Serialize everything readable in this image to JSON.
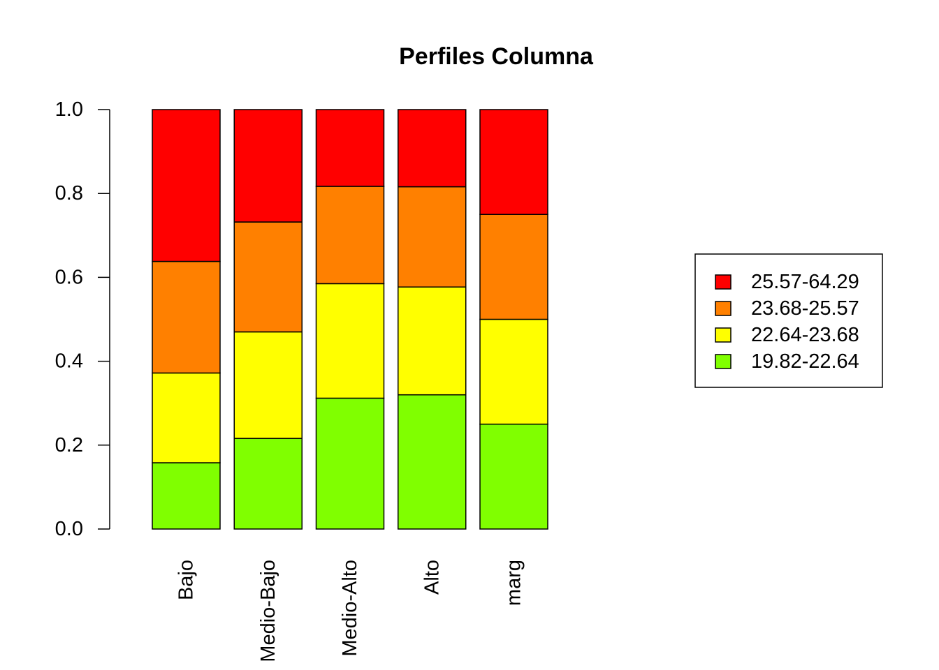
{
  "chart_data": {
    "type": "bar",
    "stacked": true,
    "title": "Perfiles Columna",
    "xlabel": "",
    "ylabel": "",
    "ylim": [
      0,
      1
    ],
    "yticks": [
      "0.0",
      "0.2",
      "0.4",
      "0.6",
      "0.8",
      "1.0"
    ],
    "categories": [
      "Bajo",
      "Medio-Bajo",
      "Medio-Alto",
      "Alto",
      "marg"
    ],
    "series": [
      {
        "name": "19.82-22.64",
        "color": "#80ff00",
        "values": [
          0.158,
          0.216,
          0.312,
          0.32,
          0.25
        ]
      },
      {
        "name": "22.64-23.68",
        "color": "#ffff00",
        "values": [
          0.214,
          0.254,
          0.273,
          0.257,
          0.25
        ]
      },
      {
        "name": "23.68-25.57",
        "color": "#ff8000",
        "values": [
          0.266,
          0.262,
          0.232,
          0.239,
          0.25
        ]
      },
      {
        "name": "25.57-64.29",
        "color": "#ff0000",
        "values": [
          0.362,
          0.268,
          0.183,
          0.184,
          0.25
        ]
      }
    ],
    "grid": false,
    "legend": {
      "position": "right",
      "order": [
        "25.57-64.29",
        "23.68-25.57",
        "22.64-23.68",
        "19.82-22.64"
      ]
    }
  }
}
